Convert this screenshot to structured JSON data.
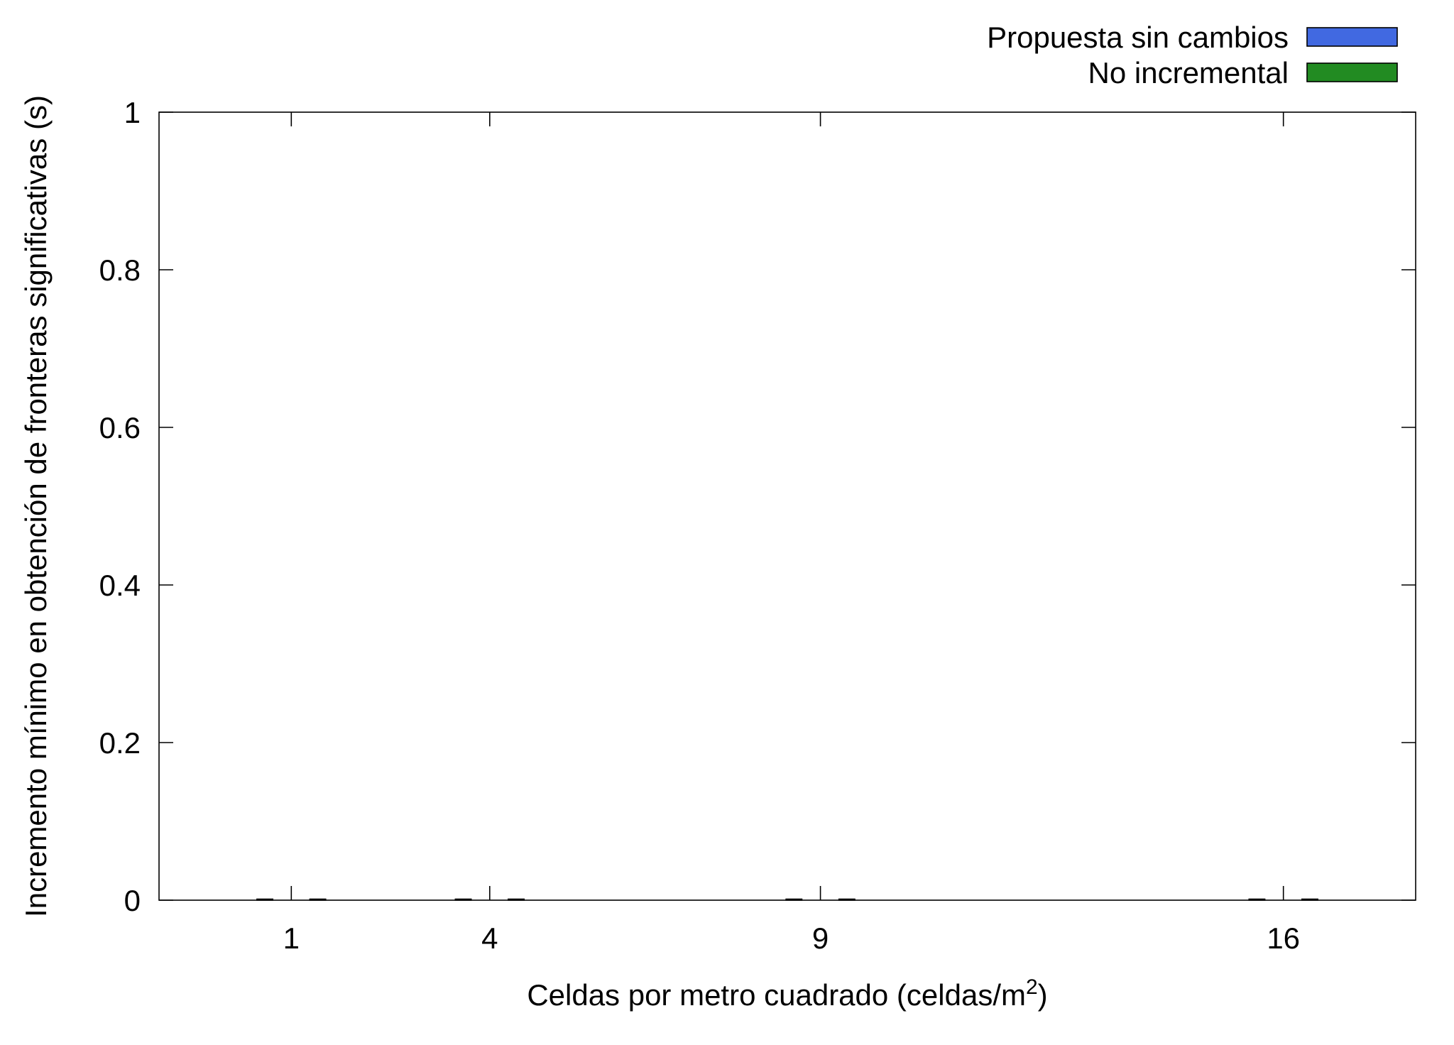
{
  "chart_data": {
    "type": "bar",
    "xlabel": "Celdas por metro cuadrado (celdas/m",
    "xlabel_superscript": "2",
    "xlabel_suffix": ")",
    "ylabel": "Incremento mínimo en obtención de fronteras significativas (s)",
    "x": [
      1,
      4,
      9,
      16
    ],
    "x_tick_labels": [
      "1",
      "4",
      "9",
      "16"
    ],
    "xlim": [
      -1,
      18
    ],
    "ylim": [
      0,
      1
    ],
    "y_ticks": [
      0,
      0.2,
      0.4,
      0.6,
      0.8,
      1
    ],
    "y_tick_labels": [
      "0",
      "0.2",
      "0.4",
      "0.6",
      "0.8",
      "1"
    ],
    "grid": false,
    "legend_position": "top-right",
    "series": [
      {
        "name": "Propuesta sin cambios",
        "color": "#4169e1",
        "values": [
          0,
          0,
          0,
          0
        ]
      },
      {
        "name": "No incremental",
        "color": "#228b22",
        "values": [
          0,
          0,
          0,
          0
        ]
      }
    ]
  }
}
